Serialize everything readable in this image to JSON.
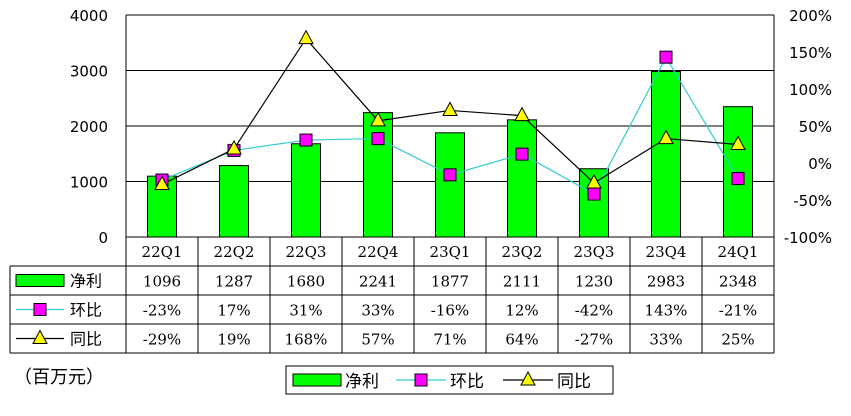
{
  "chart_data": {
    "type": "bar",
    "categories": [
      "22Q1",
      "22Q2",
      "22Q3",
      "22Q4",
      "23Q1",
      "23Q2",
      "23Q3",
      "23Q4",
      "24Q1"
    ],
    "series": [
      {
        "name": "净利",
        "kind": "bar",
        "axis": "left",
        "color": "#00ff00",
        "values": [
          1096,
          1287,
          1680,
          2241,
          1877,
          2111,
          1230,
          2983,
          2348
        ],
        "labels": [
          "1096",
          "1287",
          "1680",
          "2241",
          "1877",
          "2111",
          "1230",
          "2983",
          "2348"
        ]
      },
      {
        "name": "环比",
        "kind": "line",
        "axis": "right",
        "color": "#33cccc",
        "marker": "square",
        "marker_color": "#ff00ff",
        "values": [
          -23,
          17,
          31,
          33,
          -16,
          12,
          -42,
          143,
          -21
        ],
        "labels": [
          "-23%",
          "17%",
          "31%",
          "33%",
          "-16%",
          "12%",
          "-42%",
          "143%",
          "-21%"
        ]
      },
      {
        "name": "同比",
        "kind": "line",
        "axis": "right",
        "color": "#000000",
        "marker": "triangle",
        "marker_color": "#ffff00",
        "values": [
          -29,
          19,
          168,
          57,
          71,
          64,
          -27,
          33,
          25
        ],
        "labels": [
          "-29%",
          "19%",
          "168%",
          "57%",
          "71%",
          "64%",
          "-27%",
          "33%",
          "25%"
        ]
      }
    ],
    "left_axis": {
      "min": 0,
      "max": 4000,
      "ticks": [
        "0",
        "1000",
        "2000",
        "3000",
        "4000"
      ]
    },
    "right_axis": {
      "min": -100,
      "max": 200,
      "ticks": [
        "-100%",
        "-50%",
        "0%",
        "50%",
        "100%",
        "150%",
        "200%"
      ]
    },
    "unit_label": "（百万元）",
    "legend": {
      "placement": "bottom",
      "items": [
        "净利",
        "环比",
        "同比"
      ]
    },
    "grid": true
  }
}
